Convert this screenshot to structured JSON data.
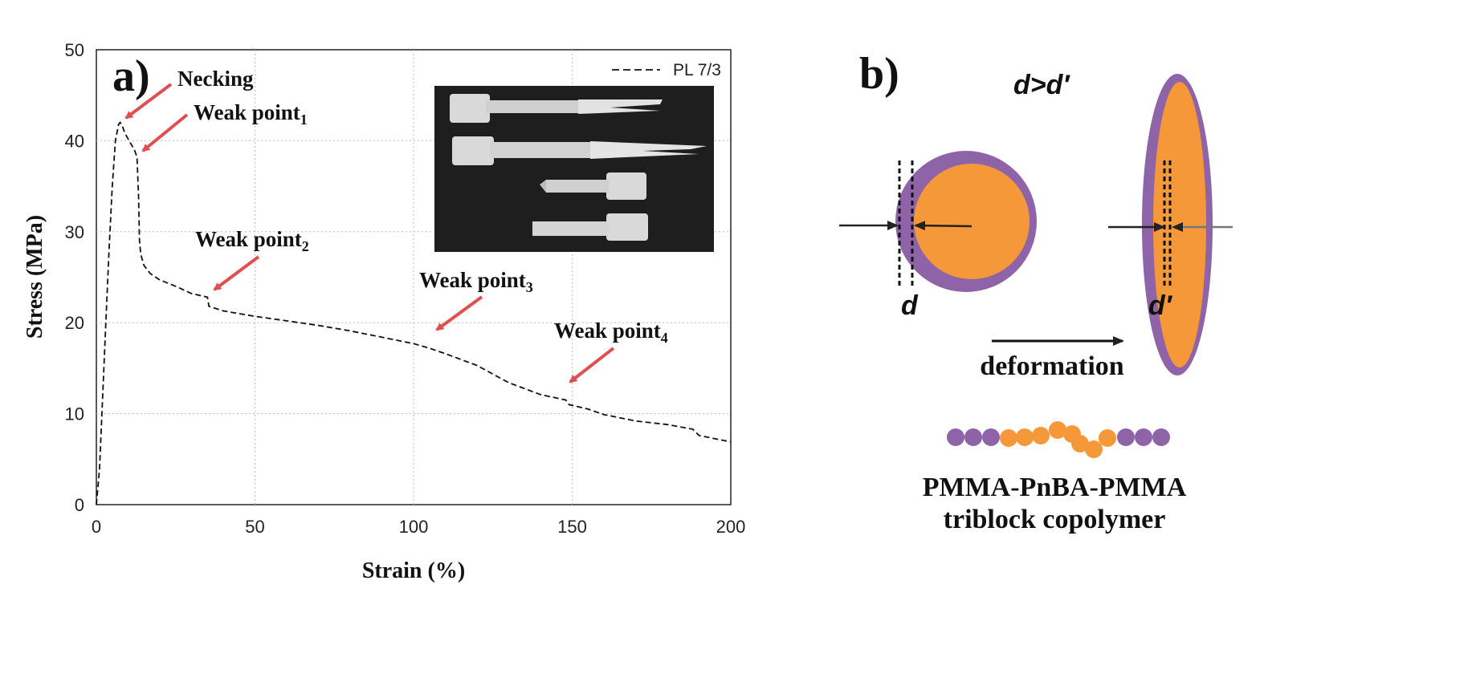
{
  "panel_a": {
    "label": "a)",
    "legend": "PL 7/3",
    "annotations": [
      {
        "id": "necking",
        "text": "Necking",
        "sub": "",
        "x": 7.5,
        "y": 42.0
      },
      {
        "id": "weak1",
        "text": "Weak point",
        "sub": "1",
        "x": 14,
        "y": 38.5
      },
      {
        "id": "weak2",
        "text": "Weak point",
        "sub": "2",
        "x": 36,
        "y": 23.2
      },
      {
        "id": "weak3",
        "text": "Weak point",
        "sub": "3",
        "x": 106,
        "y": 19.0
      },
      {
        "id": "weak4",
        "text": "Weak point",
        "sub": "4",
        "x": 149,
        "y": 13.5
      }
    ],
    "inset": "photograph of four fractured dog-bone tensile specimens"
  },
  "panel_b": {
    "label": "b)",
    "inequality": "d>d′",
    "d_label": "d",
    "d_prime_label": "d′",
    "deformation": "deformation",
    "caption_line1": "PMMA-PnBA-PMMA",
    "caption_line2": "triblock copolymer",
    "colors": {
      "pmma": "#8e63a8",
      "pnba": "#f5983a",
      "arrow_red": "#e05050"
    }
  },
  "chart_data": {
    "type": "line",
    "xlabel": "Strain (%)",
    "ylabel": "Stress (MPa)",
    "xlim": [
      0,
      200
    ],
    "ylim": [
      0,
      50
    ],
    "xticks": [
      0,
      50,
      100,
      150,
      200
    ],
    "yticks": [
      0,
      10,
      20,
      30,
      40,
      50
    ],
    "grid": true,
    "legend_position": "top-right",
    "series": [
      {
        "name": "PL 7/3",
        "style": "dashed",
        "points": [
          [
            0,
            0
          ],
          [
            1,
            4
          ],
          [
            2,
            12
          ],
          [
            3,
            20
          ],
          [
            4,
            28
          ],
          [
            5,
            35
          ],
          [
            6,
            40
          ],
          [
            7,
            41.8
          ],
          [
            7.5,
            42.0
          ],
          [
            8,
            41.8
          ],
          [
            9,
            40.8
          ],
          [
            10,
            40.2
          ],
          [
            11,
            39.6
          ],
          [
            12,
            39.0
          ],
          [
            12.8,
            38.2
          ],
          [
            13.3,
            34
          ],
          [
            13.6,
            29
          ],
          [
            14,
            27.5
          ],
          [
            15,
            26.3
          ],
          [
            17,
            25.4
          ],
          [
            20,
            24.7
          ],
          [
            25,
            24.0
          ],
          [
            30,
            23.2
          ],
          [
            35,
            22.8
          ],
          [
            35.5,
            21.8
          ],
          [
            40,
            21.3
          ],
          [
            50,
            20.7
          ],
          [
            60,
            20.2
          ],
          [
            70,
            19.7
          ],
          [
            80,
            19.1
          ],
          [
            90,
            18.4
          ],
          [
            100,
            17.7
          ],
          [
            105,
            17.2
          ],
          [
            110,
            16.6
          ],
          [
            120,
            15.3
          ],
          [
            130,
            13.4
          ],
          [
            140,
            12.1
          ],
          [
            148,
            11.5
          ],
          [
            149,
            11.0
          ],
          [
            155,
            10.5
          ],
          [
            160,
            9.9
          ],
          [
            170,
            9.2
          ],
          [
            180,
            8.8
          ],
          [
            188,
            8.3
          ],
          [
            190,
            7.6
          ],
          [
            200,
            6.9
          ]
        ]
      }
    ]
  }
}
